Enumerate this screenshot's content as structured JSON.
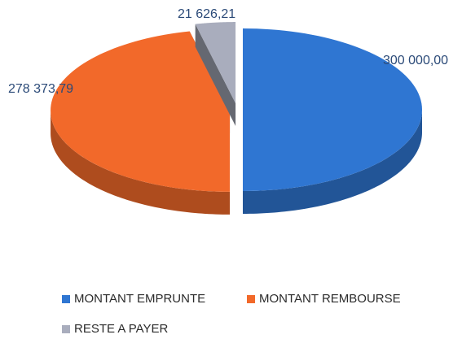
{
  "chart_data": {
    "type": "pie3d",
    "series": [
      {
        "name": "MONTANT EMPRUNTE",
        "color": "#2f76d2"
      },
      {
        "name": "MONTANT REMBOURSE",
        "color": "#f2692a"
      },
      {
        "name": "RESTE A PAYER",
        "color": "#a9adbd"
      }
    ],
    "values": [
      300000,
      278373.79,
      21626.21
    ],
    "value_labels": [
      "300 000,00",
      "278 373,79",
      "21 626,21"
    ],
    "legend": "bottom"
  }
}
